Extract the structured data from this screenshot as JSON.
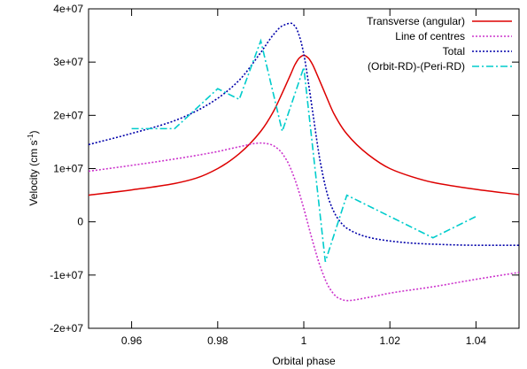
{
  "chart_data": {
    "type": "line",
    "xlabel": "Orbital phase",
    "ylabel_main": "Velocity (cm s",
    "ylabel_sup": "-1",
    "ylabel_tail": ")",
    "xlim": [
      0.95,
      1.05
    ],
    "ylim": [
      -20000000,
      40000000
    ],
    "xticks": [
      0.96,
      0.98,
      1.0,
      1.02,
      1.04
    ],
    "xtick_labels": [
      "0.96",
      "0.98",
      "1",
      "1.02",
      "1.04"
    ],
    "yticks": [
      -20000000,
      -10000000,
      0,
      10000000,
      20000000,
      30000000,
      40000000
    ],
    "ytick_labels": [
      "-2e+07",
      "-1e+07",
      "0",
      "1e+07",
      "2e+07",
      "3e+07",
      "4e+07"
    ],
    "grid": false,
    "legend_position": "top-right",
    "series": [
      {
        "name": "Transverse (angular)",
        "color": "#dd0000",
        "dash": "solid",
        "x": [
          0.95,
          0.96,
          0.97,
          0.975,
          0.98,
          0.985,
          0.99,
          0.993,
          0.995,
          0.997,
          0.998,
          0.999,
          1.0,
          1.001,
          1.002,
          1.003,
          1.005,
          1.007,
          1.01,
          1.015,
          1.02,
          1.025,
          1.03,
          1.04,
          1.05
        ],
        "y": [
          5000000,
          6000000,
          7200000,
          8200000,
          10000000,
          12800000,
          17000000,
          20800000,
          24200000,
          27800000,
          29600000,
          30800000,
          31300000,
          30800000,
          29600000,
          27800000,
          24000000,
          20300000,
          16500000,
          12600000,
          10000000,
          8500000,
          7400000,
          6100000,
          5100000
        ]
      },
      {
        "name": "Line of centres",
        "color": "#cc33cc",
        "dash": "dot",
        "x": [
          0.95,
          0.96,
          0.97,
          0.98,
          0.985,
          0.99,
          0.992,
          0.994,
          0.996,
          0.998,
          1.0,
          1.002,
          1.004,
          1.006,
          1.008,
          1.01,
          1.015,
          1.02,
          1.03,
          1.04,
          1.05
        ],
        "y": [
          9500000,
          10600000,
          11800000,
          13200000,
          14100000,
          14800000,
          14600000,
          13700000,
          11600000,
          7800000,
          2500000,
          -3500000,
          -8800000,
          -12500000,
          -14300000,
          -14800000,
          -14200000,
          -13400000,
          -12200000,
          -10800000,
          -9500000
        ]
      },
      {
        "name": "Total",
        "color": "#0000aa",
        "dash": "dot",
        "x": [
          0.95,
          0.96,
          0.97,
          0.975,
          0.98,
          0.985,
          0.99,
          0.993,
          0.995,
          0.997,
          0.998,
          0.999,
          1.0,
          1.001,
          1.002,
          1.004,
          1.006,
          1.008,
          1.01,
          1.015,
          1.02,
          1.025,
          1.03,
          1.04,
          1.05
        ],
        "y": [
          14500000,
          16600000,
          19000000,
          20800000,
          23200000,
          26600000,
          31800000,
          35200000,
          36800000,
          37300000,
          36700000,
          34800000,
          31500000,
          26500000,
          21000000,
          10500000,
          3800000,
          500000,
          -1200000,
          -2900000,
          -3600000,
          -4000000,
          -4200000,
          -4400000,
          -4400000
        ]
      },
      {
        "name": "(Orbit-RD)-(Peri-RD)",
        "color": "#00cccc",
        "dash": "dashdot",
        "x": [
          0.96,
          0.97,
          0.98,
          0.985,
          0.99,
          0.995,
          1.0,
          1.005,
          1.01,
          1.03,
          1.04
        ],
        "y": [
          17500000,
          17500000,
          25000000,
          23000000,
          34000000,
          17000000,
          29000000,
          -7500000,
          5000000,
          -3000000,
          1000000
        ]
      }
    ]
  }
}
